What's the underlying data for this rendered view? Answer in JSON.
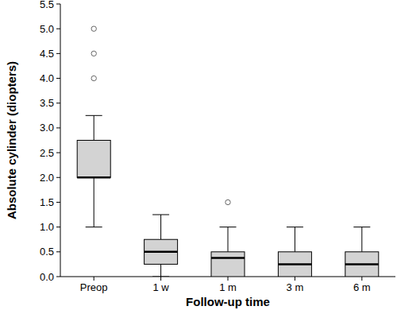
{
  "chart_data": {
    "type": "box",
    "x_label": "Follow-up time",
    "y_label": "Absolute cylinder (diopters)",
    "categories": [
      "Preop",
      "1 w",
      "1 m",
      "3 m",
      "6 m"
    ],
    "boxes": [
      {
        "min": 1.0,
        "q1": 2.0,
        "median": 2.0,
        "q3": 2.75,
        "max": 3.25,
        "outliers": [
          4.0,
          4.5,
          5.0
        ]
      },
      {
        "min": 0.0,
        "q1": 0.25,
        "median": 0.5,
        "q3": 0.75,
        "max": 1.25,
        "outliers": []
      },
      {
        "min": 0.0,
        "q1": 0.0,
        "median": 0.375,
        "q3": 0.5,
        "max": 1.0,
        "outliers": [
          1.5
        ]
      },
      {
        "min": 0.0,
        "q1": 0.0,
        "median": 0.25,
        "q3": 0.5,
        "max": 1.0,
        "outliers": []
      },
      {
        "min": 0.0,
        "q1": 0.0,
        "median": 0.25,
        "q3": 0.5,
        "max": 1.0,
        "outliers": []
      }
    ],
    "color": "#d3d3d3",
    "ylim": [
      0,
      5.5
    ],
    "yticks": [
      {
        "value": 0,
        "label": "0.0"
      },
      0.5,
      {
        "value": 1,
        "label": "1.0"
      },
      1.5,
      {
        "value": 2,
        "label": "2.0"
      },
      2.5,
      {
        "value": 3,
        "label": "3.0"
      },
      3.5,
      {
        "value": 4,
        "label": "4.0"
      },
      4.5,
      {
        "value": 5,
        "label": "5.0"
      },
      5.5
    ],
    "grid": false
  }
}
